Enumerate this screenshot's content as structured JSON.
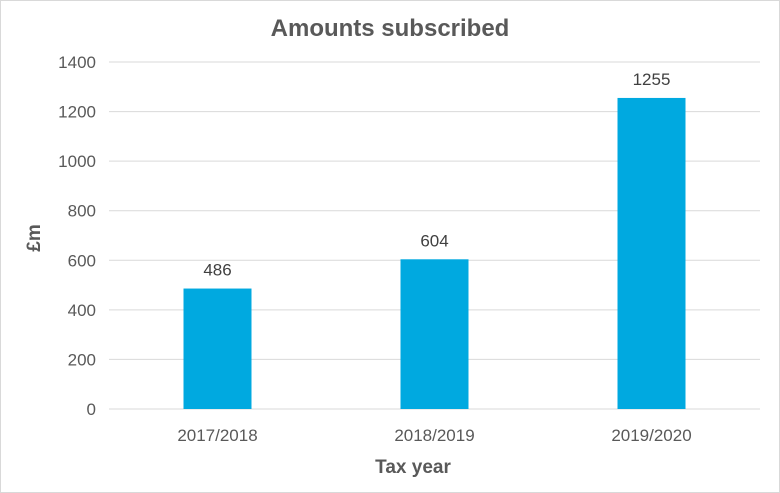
{
  "chart_data": {
    "type": "bar",
    "title": "Amounts subscribed",
    "xlabel": "Tax year",
    "ylabel": "£m",
    "categories": [
      "2017/2018",
      "2018/2019",
      "2019/2020"
    ],
    "values": [
      486,
      604,
      1255
    ],
    "data_labels": [
      "486",
      "604",
      "1255"
    ],
    "yticks": [
      0,
      200,
      400,
      600,
      800,
      1000,
      1200,
      1400
    ],
    "ytick_labels": [
      "0",
      "200",
      "400",
      "600",
      "800",
      "1000",
      "1200",
      "1400"
    ],
    "ylim": [
      0,
      1400
    ],
    "grid": true,
    "legend": "none",
    "bar_color": "#00A9E0",
    "grid_color": "#D9D9D9",
    "text_color": "#595959"
  }
}
